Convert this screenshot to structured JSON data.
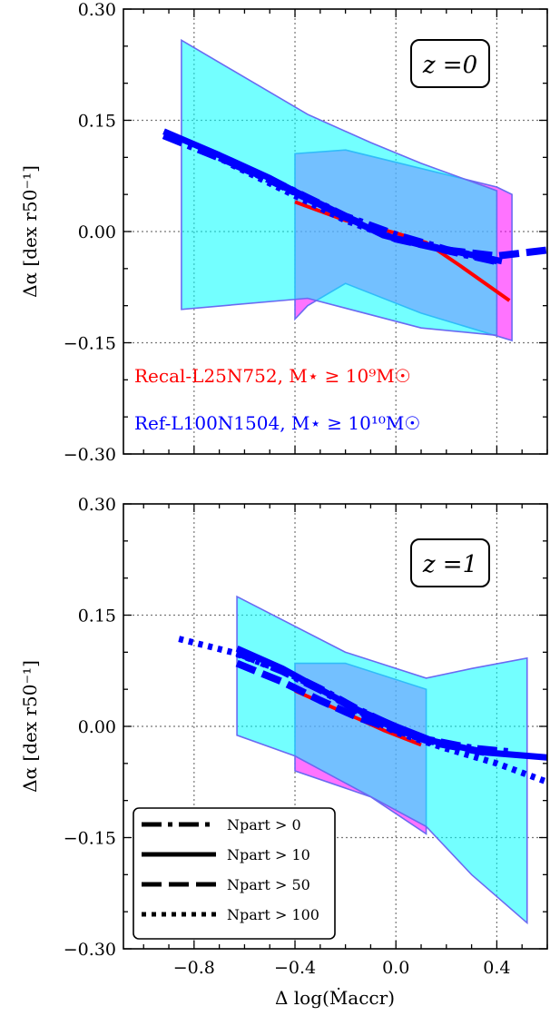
{
  "chart_data": [
    {
      "type": "line",
      "panel_label": "z =0",
      "xlabel": "Δ log(Ṁaccr)",
      "ylabel": "Δα [dex r50⁻¹]",
      "xlim": [
        -1.08,
        0.6
      ],
      "ylim": [
        -0.3,
        0.3
      ],
      "x_ticks": [
        "−0.8",
        "−0.4",
        "0.0",
        "0.4"
      ],
      "y_ticks": [
        "−0.30",
        "−0.15",
        "0.00",
        "0.15",
        "0.30"
      ],
      "grid": true,
      "annotations": [
        {
          "text": "Recal-L25N752, M⋆ ≥ 10⁹M☉",
          "color": "#ff0000"
        },
        {
          "text": "Ref-L100N1504, M⋆ ≥ 10¹⁰M☉",
          "color": "#0000ff"
        }
      ],
      "bands": [
        {
          "color": "#ff00ff",
          "upper": [
            [
              -0.4,
              0.105
            ],
            [
              -0.2,
              0.11
            ],
            [
              0.4,
              0.06
            ],
            [
              0.46,
              0.05
            ]
          ],
          "lower": [
            [
              -0.4,
              -0.118
            ],
            [
              -0.35,
              -0.1
            ],
            [
              -0.2,
              -0.07
            ],
            [
              0.1,
              -0.11
            ],
            [
              0.46,
              -0.147
            ]
          ]
        },
        {
          "color": "#00ffff",
          "upper": [
            [
              -0.85,
              0.258
            ],
            [
              -0.35,
              0.158
            ],
            [
              -0.1,
              0.12
            ],
            [
              0.1,
              0.092
            ],
            [
              0.4,
              0.055
            ]
          ],
          "lower": [
            [
              -0.85,
              -0.105
            ],
            [
              -0.35,
              -0.09
            ],
            [
              0.1,
              -0.13
            ],
            [
              0.4,
              -0.14
            ]
          ]
        }
      ],
      "series": [
        {
          "color": "#ff0000",
          "style": "solid",
          "width": 4,
          "x": [
            -0.4,
            -0.2,
            0.0,
            0.12,
            0.25,
            0.45
          ],
          "y": [
            0.04,
            0.015,
            -0.002,
            -0.015,
            -0.045,
            -0.093
          ]
        },
        {
          "color": "#0000ff",
          "style": "dashdot",
          "width": 9,
          "x": [
            -0.92,
            -0.7,
            -0.5,
            -0.35,
            -0.2,
            0.0,
            0.2,
            0.4
          ],
          "y": [
            0.13,
            0.1,
            0.07,
            0.045,
            0.02,
            -0.005,
            -0.025,
            -0.04
          ]
        },
        {
          "color": "#0000ff",
          "style": "solid",
          "width": 7,
          "x": [
            -0.92,
            -0.7,
            -0.5,
            -0.35,
            -0.2,
            -0.05,
            0.1,
            0.25,
            0.42
          ],
          "y": [
            0.135,
            0.103,
            0.072,
            0.045,
            0.02,
            -0.005,
            -0.018,
            -0.028,
            -0.04
          ]
        },
        {
          "color": "#0000ff",
          "style": "dashed",
          "width": 8,
          "x": [
            -0.7,
            -0.5,
            -0.35,
            -0.2,
            0.0,
            0.2,
            0.4,
            0.6
          ],
          "y": [
            0.1,
            0.07,
            0.045,
            0.02,
            -0.01,
            -0.025,
            -0.033,
            -0.025
          ]
        },
        {
          "color": "#0000ff",
          "style": "dotted",
          "width": 7,
          "x": [
            -0.65,
            -0.5,
            -0.35,
            -0.2,
            0.0,
            0.2,
            0.4
          ],
          "y": [
            0.09,
            0.065,
            0.04,
            0.015,
            -0.01,
            -0.025,
            -0.04
          ]
        }
      ]
    },
    {
      "type": "line",
      "panel_label": "z =1",
      "xlabel": "Δ log(Ṁaccr)",
      "ylabel": "Δα [dex r50⁻¹]",
      "xlim": [
        -1.08,
        0.6
      ],
      "ylim": [
        -0.3,
        0.3
      ],
      "x_ticks": [
        "−0.8",
        "−0.4",
        "0.0",
        "0.4"
      ],
      "y_ticks": [
        "−0.30",
        "−0.15",
        "0.00",
        "0.15",
        "0.30"
      ],
      "grid": true,
      "legend": {
        "placement": "lower-left",
        "entries": [
          {
            "style": "dashdot",
            "label": "Npart > 0"
          },
          {
            "style": "solid",
            "label": "Npart > 10"
          },
          {
            "style": "dashed",
            "label": "Npart > 50"
          },
          {
            "style": "dotted",
            "label": "Npart > 100"
          }
        ]
      },
      "bands": [
        {
          "color": "#ff00ff",
          "upper": [
            [
              -0.4,
              0.085
            ],
            [
              -0.2,
              0.085
            ],
            [
              0.12,
              0.05
            ]
          ],
          "lower": [
            [
              -0.4,
              -0.06
            ],
            [
              -0.1,
              -0.095
            ],
            [
              0.12,
              -0.145
            ]
          ]
        },
        {
          "color": "#00ffff",
          "upper": [
            [
              -0.63,
              0.175
            ],
            [
              -0.2,
              0.1
            ],
            [
              0.12,
              0.065
            ],
            [
              0.3,
              0.078
            ],
            [
              0.52,
              0.092
            ]
          ],
          "lower": [
            [
              -0.63,
              -0.012
            ],
            [
              -0.4,
              -0.04
            ],
            [
              0.12,
              -0.135
            ],
            [
              0.3,
              -0.2
            ],
            [
              0.52,
              -0.265
            ]
          ]
        }
      ],
      "series": [
        {
          "color": "#ff0000",
          "style": "solid",
          "width": 4,
          "x": [
            -0.4,
            -0.2,
            -0.05,
            0.1
          ],
          "y": [
            0.048,
            0.018,
            -0.005,
            -0.025
          ]
        },
        {
          "color": "#0000ff",
          "style": "dashdot",
          "width": 9,
          "x": [
            -0.63,
            -0.45,
            -0.3,
            -0.15,
            0.0,
            0.12,
            0.3,
            0.45
          ],
          "y": [
            0.1,
            0.075,
            0.05,
            0.022,
            -0.002,
            -0.018,
            -0.03,
            -0.035
          ]
        },
        {
          "color": "#0000ff",
          "style": "solid",
          "width": 7,
          "x": [
            -0.63,
            -0.45,
            -0.3,
            -0.15,
            0.0,
            0.15,
            0.35,
            0.6
          ],
          "y": [
            0.105,
            0.078,
            0.05,
            0.022,
            0.0,
            -0.02,
            -0.035,
            -0.042
          ]
        },
        {
          "color": "#0000ff",
          "style": "dashed",
          "width": 8,
          "x": [
            -0.63,
            -0.45,
            -0.3,
            -0.15,
            0.0,
            0.15,
            0.35
          ],
          "y": [
            0.085,
            0.06,
            0.035,
            0.012,
            -0.005,
            -0.022,
            -0.035
          ]
        },
        {
          "color": "#0000ff",
          "style": "dotted",
          "width": 7,
          "x": [
            -0.86,
            -0.65,
            -0.45,
            -0.3,
            -0.15,
            0.0,
            0.2,
            0.4,
            0.6
          ],
          "y": [
            0.118,
            0.1,
            0.075,
            0.05,
            0.02,
            -0.008,
            -0.03,
            -0.05,
            -0.075
          ]
        }
      ]
    }
  ]
}
